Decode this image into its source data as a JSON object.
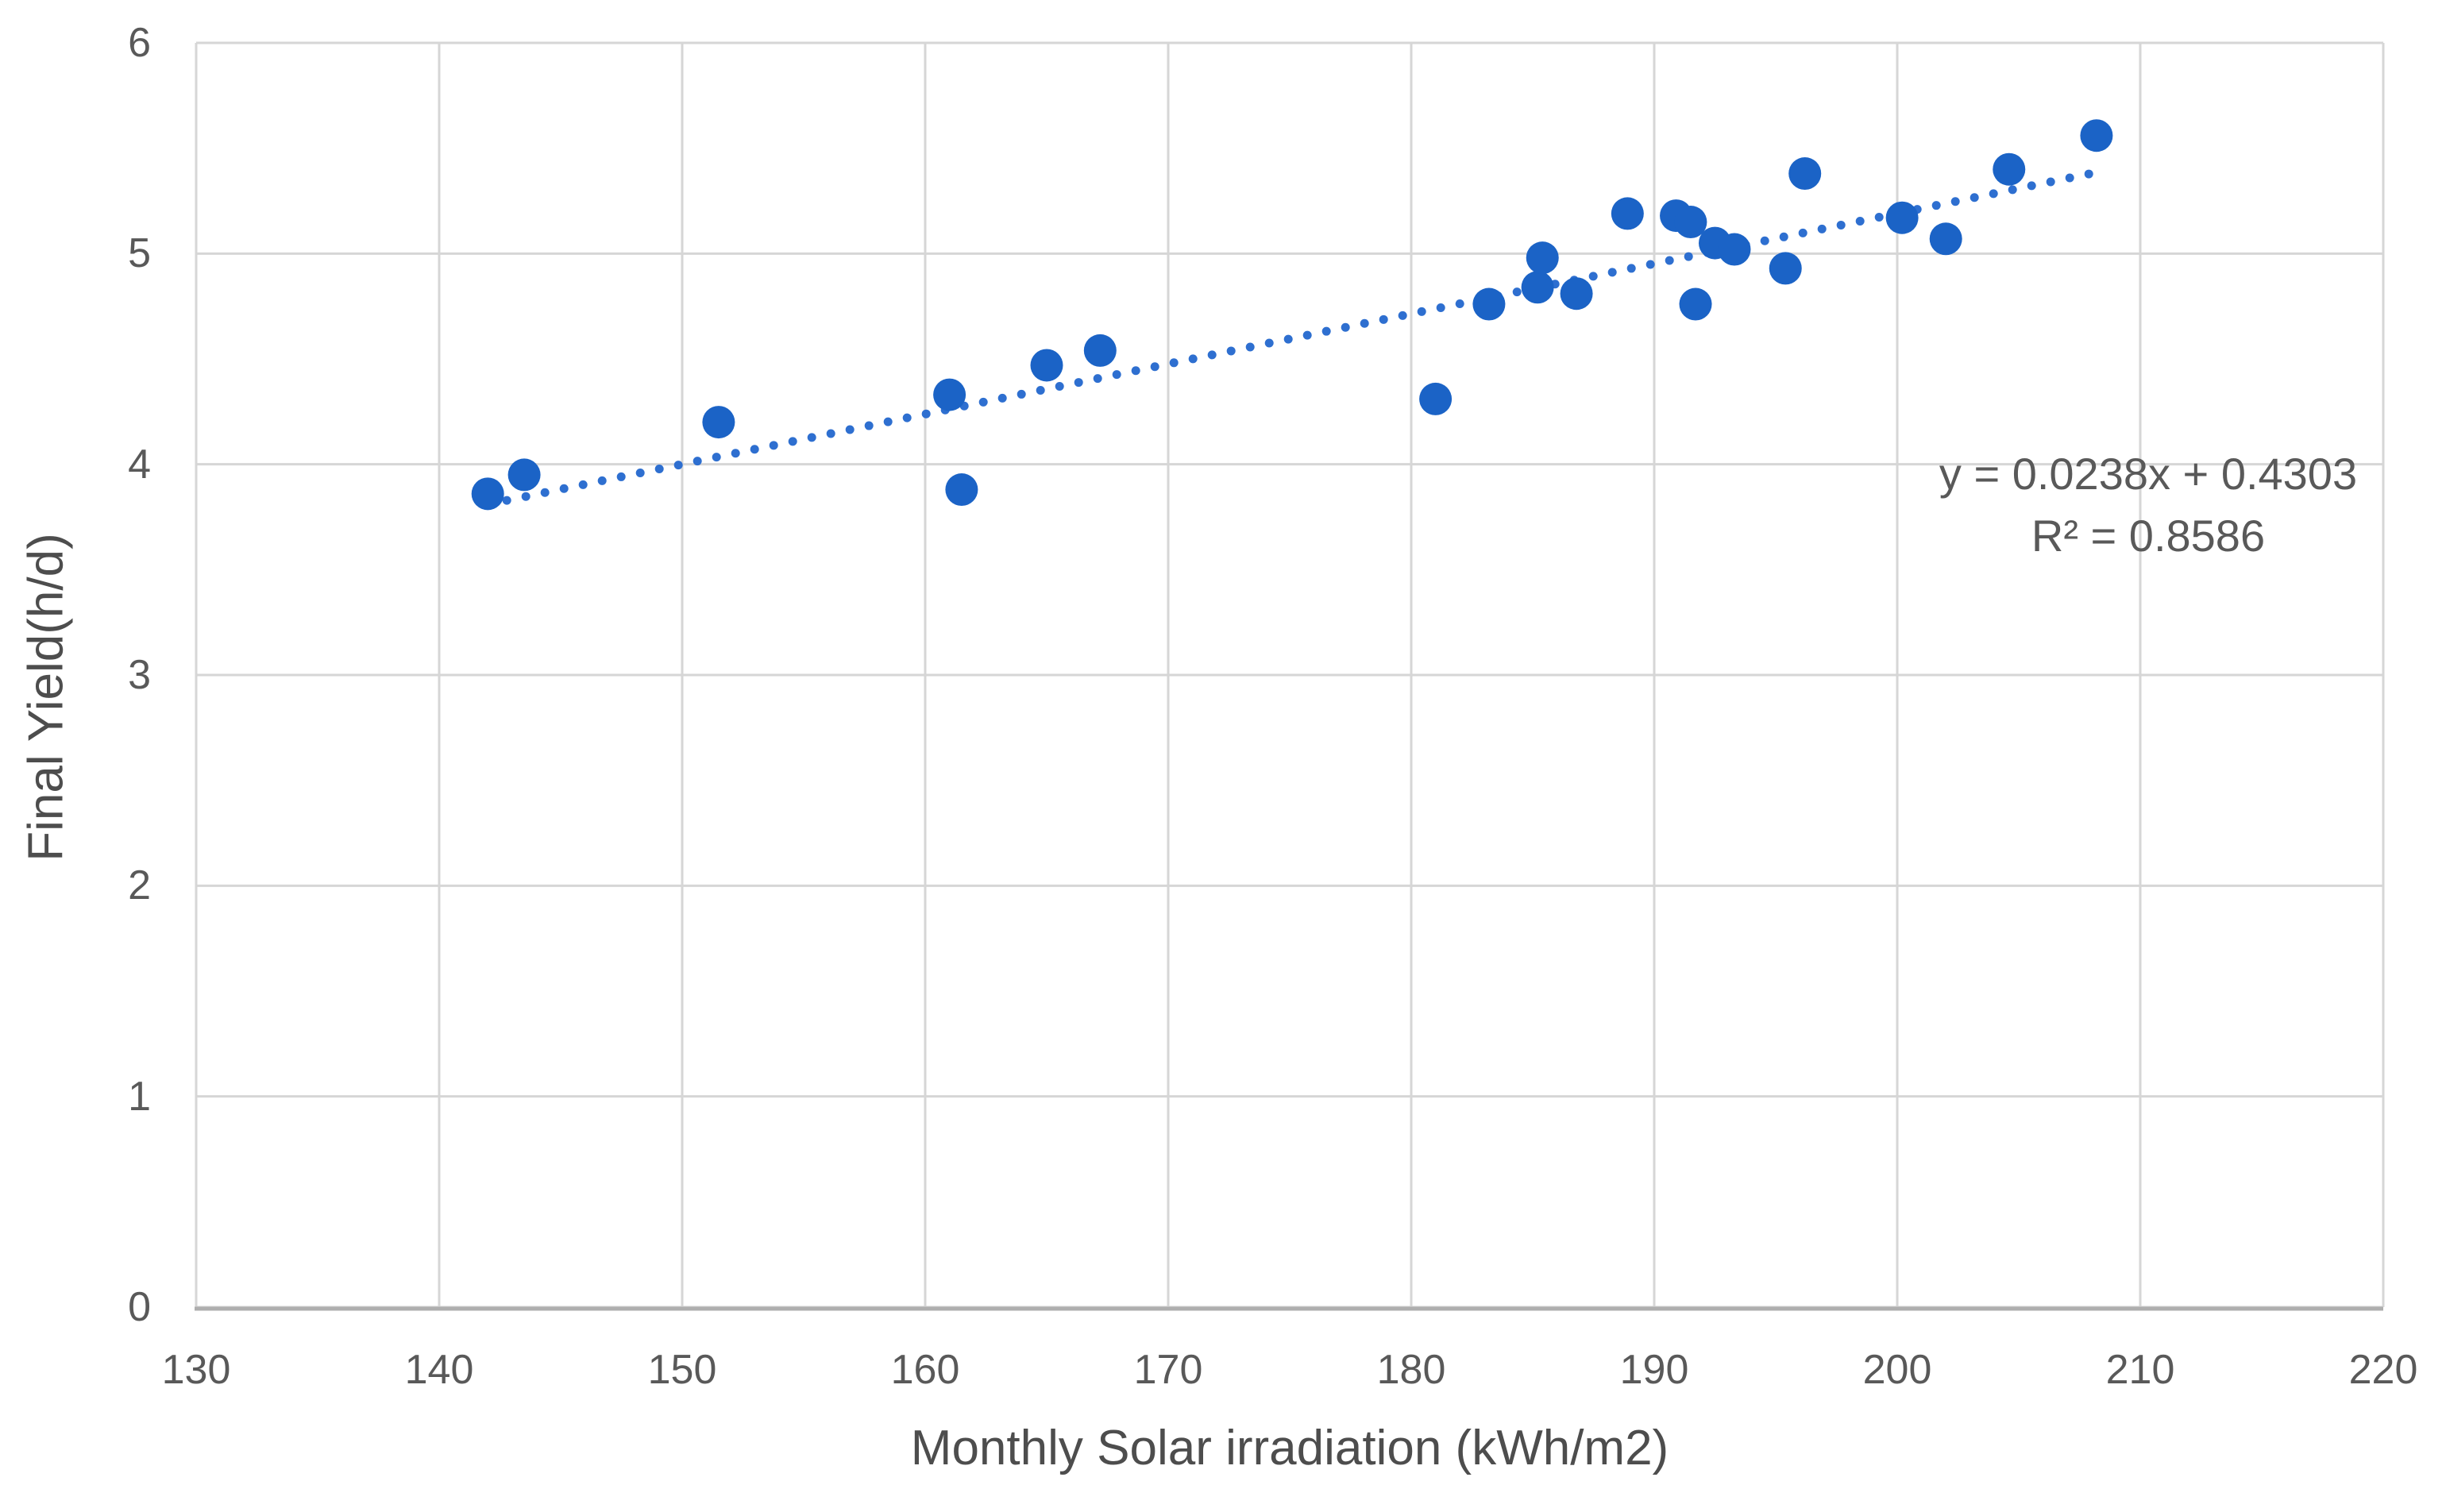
{
  "chart_data": {
    "type": "scatter",
    "title": "",
    "xlabel": "Monthly Solar irradiation (kWh/m2)",
    "ylabel": "Final Yield(h/d)",
    "xlim": [
      130,
      220
    ],
    "ylim": [
      0,
      6
    ],
    "xticks": [
      130,
      140,
      150,
      160,
      170,
      180,
      190,
      200,
      210,
      220
    ],
    "yticks": [
      0,
      1,
      2,
      3,
      4,
      5,
      6
    ],
    "grid": true,
    "legend": "none",
    "points": [
      [
        142.0,
        3.86
      ],
      [
        143.5,
        3.95
      ],
      [
        151.5,
        4.2
      ],
      [
        161.0,
        4.33
      ],
      [
        161.5,
        3.88
      ],
      [
        165.0,
        4.47
      ],
      [
        167.2,
        4.54
      ],
      [
        181.0,
        4.31
      ],
      [
        183.2,
        4.76
      ],
      [
        185.2,
        4.84
      ],
      [
        185.4,
        4.98
      ],
      [
        186.8,
        4.81
      ],
      [
        188.9,
        5.19
      ],
      [
        190.9,
        5.18
      ],
      [
        191.5,
        5.15
      ],
      [
        191.7,
        4.76
      ],
      [
        192.5,
        5.05
      ],
      [
        193.3,
        5.02
      ],
      [
        195.4,
        4.93
      ],
      [
        196.2,
        5.38
      ],
      [
        200.2,
        5.17
      ],
      [
        202.0,
        5.07
      ],
      [
        204.6,
        5.4
      ],
      [
        208.2,
        5.56
      ]
    ],
    "trendline": {
      "style": "dotted",
      "slope": 0.0238,
      "intercept": 0.4303,
      "x_start": 142.0,
      "x_end": 208.5
    },
    "colors": {
      "point": "#1b63c6",
      "trend": "#2e6fd0",
      "gridline": "#d6d6d6",
      "axis_line": "#aeaeae",
      "tick_text": "#595959",
      "title_text": "#4d4d4d"
    }
  },
  "annotation": {
    "equation_line": "y = 0.0238x + 0.4303",
    "r_squared_line": "R² = 0.8586"
  }
}
